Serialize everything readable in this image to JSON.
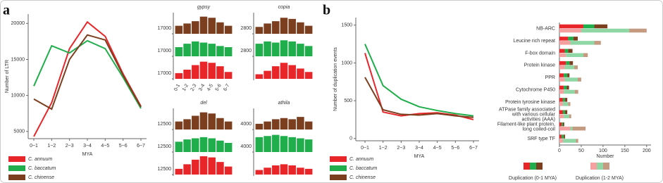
{
  "chart_data": [
    {
      "type": "line",
      "label": "a",
      "ylabel": "Number of LTR",
      "xlabel": "MYA",
      "categories": [
        "0~1",
        "1~2",
        "2~3",
        "3~4",
        "4~5",
        "5~6",
        "6~7"
      ],
      "ylim": [
        4000,
        21300
      ],
      "yticks": [
        5000,
        10000,
        15000,
        20000
      ],
      "series": [
        {
          "name": "C. annuum",
          "color": "#e8262a",
          "values": [
            4300,
            9000,
            16500,
            20200,
            18200,
            13000,
            8500
          ]
        },
        {
          "name": "C. baccatum",
          "color": "#1fae4b",
          "values": [
            11300,
            16900,
            15900,
            17600,
            16500,
            12500,
            8200
          ]
        },
        {
          "name": "C. chinense",
          "color": "#7b3f1f",
          "values": [
            9500,
            8100,
            15000,
            18400,
            17700,
            12800,
            8400
          ]
        }
      ]
    },
    {
      "type": "bar-grid",
      "categories": [
        "0-1",
        "1-2",
        "2-3",
        "3-4",
        "4-5",
        "5-6",
        "6-7"
      ],
      "panels": [
        {
          "title": "gypsy",
          "rows": [
            {
              "color": "#7b3f1f",
              "ylim": [
                17000,
                17800
              ],
              "yticks": [
                17000
              ],
              "values": [
                17350,
                17450,
                17550,
                17750,
                17700,
                17500,
                17350
              ]
            },
            {
              "color": "#1fae4b",
              "ylim": [
                17000,
                17800
              ],
              "yticks": [
                17000
              ],
              "values": [
                17400,
                17550,
                17650,
                17600,
                17550,
                17450,
                17400
              ]
            },
            {
              "color": "#e8262a",
              "ylim": [
                17000,
                17800
              ],
              "yticks": [
                17000
              ],
              "values": [
                17250,
                17400,
                17600,
                17750,
                17700,
                17550,
                17300
              ]
            }
          ]
        },
        {
          "title": "copia",
          "rows": [
            {
              "color": "#7b3f1f",
              "ylim": [
                2800,
                3600
              ],
              "yticks": [
                2800
              ],
              "values": [
                3100,
                3250,
                3350,
                3500,
                3450,
                3300,
                3150
              ]
            },
            {
              "color": "#1fae4b",
              "ylim": [
                2800,
                3600
              ],
              "yticks": [
                2800
              ],
              "values": [
                3350,
                3450,
                3400,
                3500,
                3450,
                3350,
                3250
              ]
            },
            {
              "color": "#e8262a",
              "ylim": [
                2800,
                3600
              ],
              "values": [
                3000,
                3150,
                3350,
                3500,
                3400,
                3250,
                3100
              ]
            }
          ]
        },
        {
          "title": "del",
          "rows": [
            {
              "color": "#7b3f1f",
              "ylim": [
                12500,
                13300
              ],
              "yticks": [
                12500
              ],
              "values": [
                12850,
                12950,
                13100,
                13250,
                13200,
                13000,
                12850
              ]
            },
            {
              "color": "#1fae4b",
              "ylim": [
                12500,
                13300
              ],
              "yticks": [
                12500
              ],
              "values": [
                12950,
                13050,
                13100,
                13150,
                13100,
                13000,
                12900
              ]
            },
            {
              "color": "#e8262a",
              "ylim": [
                12500,
                13300
              ],
              "yticks": [
                12500
              ],
              "values": [
                12750,
                12950,
                13150,
                13300,
                13250,
                13050,
                12850
              ]
            }
          ]
        },
        {
          "title": "athila",
          "rows": [
            {
              "color": "#7b3f1f",
              "ylim": [
                4000,
                4800
              ],
              "yticks": [
                4000
              ],
              "values": [
                4250,
                4350,
                4450,
                4500,
                4450,
                4550,
                4350
              ]
            },
            {
              "color": "#1fae4b",
              "ylim": [
                4000,
                4800
              ],
              "yticks": [
                4000
              ],
              "values": [
                4650,
                4700,
                4750,
                4700,
                4650,
                4600,
                4550
              ]
            },
            {
              "color": "#e8262a",
              "ylim": [
                4000,
                4800
              ],
              "values": [
                4200,
                4300,
                4400,
                4450,
                4400,
                4300,
                4250
              ]
            }
          ]
        }
      ]
    },
    {
      "type": "line",
      "label": "b",
      "ylabel": "Number of duplication events",
      "xlabel": "MYA",
      "categories": [
        "0~1",
        "1~2",
        "2~3",
        "3~4",
        "4~5",
        "5~6",
        "6~7"
      ],
      "ylim": [
        -30,
        1600
      ],
      "yticks": [
        0,
        500,
        1000,
        1500
      ],
      "series": [
        {
          "name": "C. annuum",
          "color": "#e8262a",
          "values": [
            1130,
            350,
            300,
            330,
            340,
            310,
            250
          ]
        },
        {
          "name": "C. baccatum",
          "color": "#1fae4b",
          "values": [
            1250,
            700,
            520,
            420,
            370,
            330,
            300
          ]
        },
        {
          "name": "C. chinense",
          "color": "#7b3f1f",
          "values": [
            810,
            380,
            320,
            310,
            330,
            300,
            280
          ]
        }
      ]
    },
    {
      "type": "stacked-hbar",
      "xlabel": "Number",
      "categories": [
        "NB-ARC",
        "Leucine rich repeat",
        "F-box domain",
        "Protein kinase",
        "PPR",
        "Cytochrome  P450",
        "Protein tyrosine kinase",
        "ATPase family associated with various cellular activities (AAA)",
        "Filament-like plant protein, long coiled-coil",
        "SRF type TF"
      ],
      "xlim": [
        0,
        210
      ],
      "xticks": [
        0,
        50,
        100,
        150,
        200
      ],
      "groups": [
        {
          "name": "Duplication (0-1 MYA)",
          "series": [
            {
              "color": "#e8262a",
              "values": [
                55,
                20,
                12,
                15,
                10,
                10,
                8,
                8,
                5,
                5
              ]
            },
            {
              "color": "#1fae4b",
              "values": [
                25,
                12,
                8,
                8,
                8,
                7,
                5,
                5,
                3,
                5
              ]
            },
            {
              "color": "#7b3f1f",
              "values": [
                30,
                10,
                10,
                8,
                5,
                5,
                5,
                5,
                3,
                3
              ]
            }
          ]
        },
        {
          "name": "Duplication (1-2 MYA)",
          "series": [
            {
              "color": "#f4a0a0",
              "values": [
                50,
                25,
                15,
                12,
                12,
                10,
                8,
                10,
                25,
                8
              ]
            },
            {
              "color": "#8fd8a5",
              "values": [
                110,
                55,
                40,
                22,
                30,
                25,
                12,
                12,
                5,
                30
              ]
            },
            {
              "color": "#c49a80",
              "values": [
                40,
                15,
                10,
                8,
                8,
                8,
                5,
                5,
                30,
                5
              ]
            }
          ]
        }
      ]
    }
  ]
}
